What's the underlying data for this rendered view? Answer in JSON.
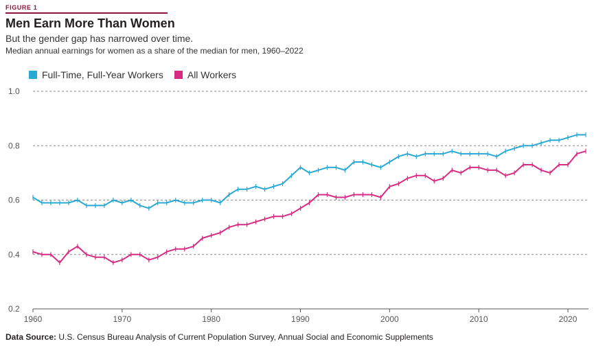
{
  "figure_label": "FIGURE 1",
  "title": "Men Earn More Than Women",
  "subtitle": "But the gender gap has narrowed over time.",
  "description": "Median annual earnings for women as a share of the median for men, 1960–2022",
  "source_label": "Data Source:",
  "source_text": "U.S. Census Bureau Analysis of Current Population Survey, Annual Social and Economic Supplements",
  "colors": {
    "full_time": "#29a8d4",
    "all_workers": "#d62b83",
    "accent": "#8a1538",
    "grid": "#888888"
  },
  "chart_data": {
    "type": "line",
    "title": "Men Earn More Than Women",
    "subtitle": "But the gender gap has narrowed over time.",
    "xlabel": "",
    "ylabel": "",
    "xlim": [
      1960,
      2022
    ],
    "ylim": [
      0.2,
      1.0
    ],
    "yticks": [
      "0.2",
      "0.4",
      "0.6",
      "0.8",
      "1.0"
    ],
    "xticks": [
      "1960",
      "1970",
      "1980",
      "1990",
      "2000",
      "2010",
      "2020"
    ],
    "grid": "horizontal dashed",
    "legend_position": "top-left",
    "x": [
      1960,
      1961,
      1962,
      1963,
      1964,
      1965,
      1966,
      1967,
      1968,
      1969,
      1970,
      1971,
      1972,
      1973,
      1974,
      1975,
      1976,
      1977,
      1978,
      1979,
      1980,
      1981,
      1982,
      1983,
      1984,
      1985,
      1986,
      1987,
      1988,
      1989,
      1990,
      1991,
      1992,
      1993,
      1994,
      1995,
      1996,
      1997,
      1998,
      1999,
      2000,
      2001,
      2002,
      2003,
      2004,
      2005,
      2006,
      2007,
      2008,
      2009,
      2010,
      2011,
      2012,
      2013,
      2014,
      2015,
      2016,
      2017,
      2018,
      2019,
      2020,
      2021,
      2022
    ],
    "series": [
      {
        "name": "Full-Time, Full-Year Workers",
        "values": [
          0.61,
          0.59,
          0.59,
          0.59,
          0.59,
          0.6,
          0.58,
          0.58,
          0.58,
          0.6,
          0.59,
          0.6,
          0.58,
          0.57,
          0.59,
          0.59,
          0.6,
          0.59,
          0.59,
          0.6,
          0.6,
          0.59,
          0.62,
          0.64,
          0.64,
          0.65,
          0.64,
          0.65,
          0.66,
          0.69,
          0.72,
          0.7,
          0.71,
          0.72,
          0.72,
          0.71,
          0.74,
          0.74,
          0.73,
          0.72,
          0.74,
          0.76,
          0.77,
          0.76,
          0.77,
          0.77,
          0.77,
          0.78,
          0.77,
          0.77,
          0.77,
          0.77,
          0.76,
          0.78,
          0.79,
          0.8,
          0.8,
          0.81,
          0.82,
          0.82,
          0.83,
          0.84,
          0.84
        ]
      },
      {
        "name": "All Workers",
        "values": [
          0.41,
          0.4,
          0.4,
          0.37,
          0.41,
          0.43,
          0.4,
          0.39,
          0.39,
          0.37,
          0.38,
          0.4,
          0.4,
          0.38,
          0.39,
          0.41,
          0.42,
          0.42,
          0.43,
          0.46,
          0.47,
          0.48,
          0.5,
          0.51,
          0.51,
          0.52,
          0.53,
          0.54,
          0.54,
          0.55,
          0.57,
          0.59,
          0.62,
          0.62,
          0.61,
          0.61,
          0.62,
          0.62,
          0.62,
          0.61,
          0.65,
          0.66,
          0.68,
          0.69,
          0.69,
          0.67,
          0.68,
          0.71,
          0.7,
          0.72,
          0.72,
          0.71,
          0.71,
          0.69,
          0.7,
          0.73,
          0.73,
          0.71,
          0.7,
          0.73,
          0.73,
          0.77,
          0.78
        ]
      }
    ]
  }
}
